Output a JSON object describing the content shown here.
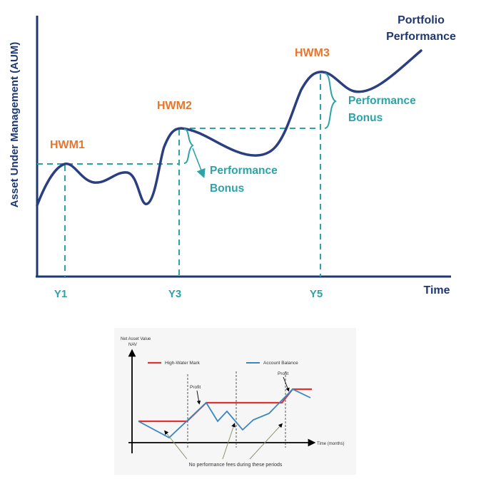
{
  "top_chart": {
    "title_line1": "Portfolio",
    "title_line2": "Performance",
    "y_axis_label": "Asset Under Management (AUM)",
    "x_axis_label": "Time",
    "hwm_labels": [
      "HWM1",
      "HWM2",
      "HWM3"
    ],
    "bonus_line1": "Performance",
    "bonus_line2": "Bonus",
    "x_ticks": [
      "Y1",
      "Y3",
      "Y5"
    ],
    "colors": {
      "curve": "#2b3f80",
      "teal": "#2ba3a8",
      "orange": "#e8752c",
      "axis": "#1f3871"
    }
  },
  "bottom_chart": {
    "y_axis_label_line1": "Net Asset Value",
    "y_axis_label_line2": "NAV",
    "x_axis_label": "Time (months)",
    "legend": {
      "high_water_mark": "High-Water Mark",
      "account_balance": "Account Balance"
    },
    "profit_label": "Profit",
    "note": "No performance fees during these periods",
    "colors": {
      "hwm": "#e0322e",
      "balance": "#3a86c0"
    }
  }
}
